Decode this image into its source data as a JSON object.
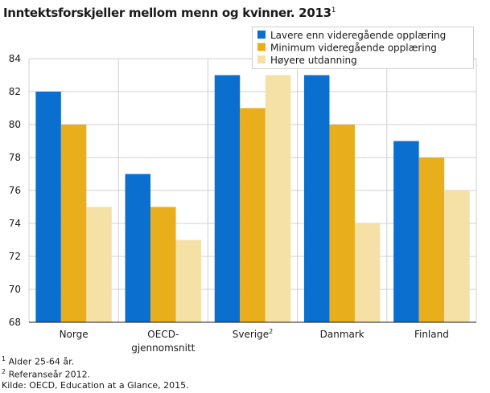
{
  "title": "Inntektsforskjeller mellom menn og kvinner. 2013",
  "title_sup": "1",
  "chart_data": {
    "type": "bar",
    "title": "Inntektsforskjeller mellom menn og kvinner. 2013",
    "xlabel": "",
    "ylabel": "",
    "ylim": [
      68,
      84
    ],
    "yticks": [
      68,
      70,
      72,
      74,
      76,
      78,
      80,
      82,
      84
    ],
    "grid": true,
    "legend_position": "top-right",
    "categories": [
      [
        "Norge"
      ],
      [
        "OECD-",
        "gjennomsnitt"
      ],
      [
        "Sverige"
      ],
      [
        "Danmark"
      ],
      [
        "Finland"
      ]
    ],
    "category_sup": [
      "",
      "",
      "2",
      "",
      ""
    ],
    "series": [
      {
        "name": "Lavere enn videregående opplæring",
        "color": "#0a6fcf",
        "values": [
          82,
          77,
          83,
          83,
          79
        ]
      },
      {
        "name": "Minimum videregående opplæring",
        "color": "#e8ae1c",
        "values": [
          80,
          75,
          81,
          80,
          78
        ]
      },
      {
        "name": "Høyere utdanning",
        "color": "#f5e0a6",
        "values": [
          75,
          73,
          83,
          74,
          76
        ]
      }
    ]
  },
  "footnotes": [
    {
      "sup": "1",
      "text": "Alder 25-64 år."
    },
    {
      "sup": "2",
      "text": "Referanseår 2012."
    }
  ],
  "source": "Kilde: OECD, Education at a Glance, 2015."
}
